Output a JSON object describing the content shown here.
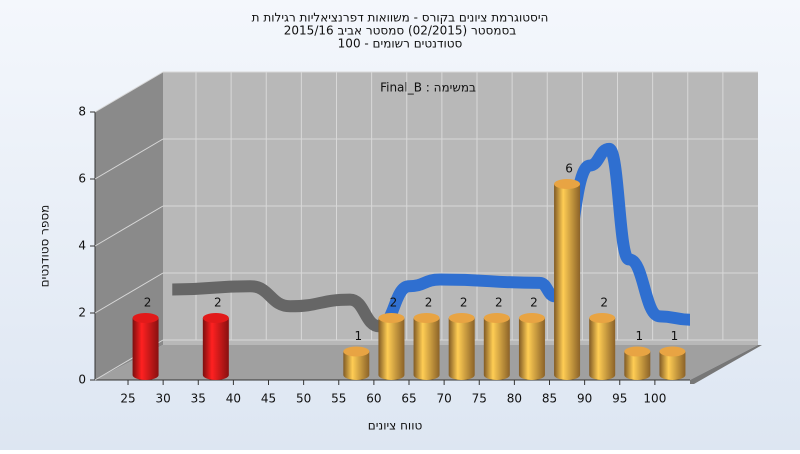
{
  "chart_data": {
    "type": "histogram",
    "title": [
      "היסטוגרמת ציונים בקורס - משוואות דפרנציאליות רגילות ת",
      "בסמסטר  (02/2015)  סמסטר אביב 2015/16",
      "100 - סטודנטים רשומים"
    ],
    "subtitle": "Final_B : במשימה",
    "xlabel": "טווח ציונים",
    "ylabel": "מספר סטודנטים",
    "bins": [
      25,
      30,
      35,
      40,
      45,
      50,
      55,
      60,
      65,
      70,
      75,
      80,
      85,
      90,
      95,
      100,
      105
    ],
    "values": [
      2,
      0,
      2,
      0,
      0,
      0,
      1,
      2,
      2,
      2,
      2,
      2,
      6,
      2,
      1,
      1
    ],
    "colors": [
      "#e21a1a",
      "#e21a1a",
      "#e21a1a",
      "#e21a1a",
      "#e21a1a",
      "#e21a1a",
      "#e8a443",
      "#e8a443",
      "#e8a443",
      "#e8a443",
      "#e8a443",
      "#e8a443",
      "#e8a443",
      "#e8a443",
      "#e8a443",
      "#e8a443"
    ],
    "xlim": [
      20.3,
      105
    ],
    "ylim": [
      0,
      8
    ],
    "xticks": [
      25,
      30,
      35,
      40,
      45,
      50,
      55,
      60,
      65,
      70,
      75,
      80,
      85,
      90,
      95,
      100
    ],
    "yticks": [
      0,
      2,
      4,
      6,
      8
    ],
    "curve": [
      {
        "color": "#666666",
        "x": [
          31.3,
          42.4,
          48.1,
          56.6,
          60.8
        ],
        "values": [
          2.7,
          2.8,
          2.2,
          2.4,
          1.6
        ]
      },
      {
        "color": "#2f6fd0",
        "x": [
          60.8,
          65,
          69.4,
          83.6,
          85.8,
          90.7,
          93.5,
          96.3,
          100.7,
          105
        ],
        "values": [
          1.6,
          2.8,
          3.0,
          2.9,
          2.5,
          6.4,
          6.9,
          3.6,
          1.9,
          1.8
        ]
      }
    ]
  }
}
